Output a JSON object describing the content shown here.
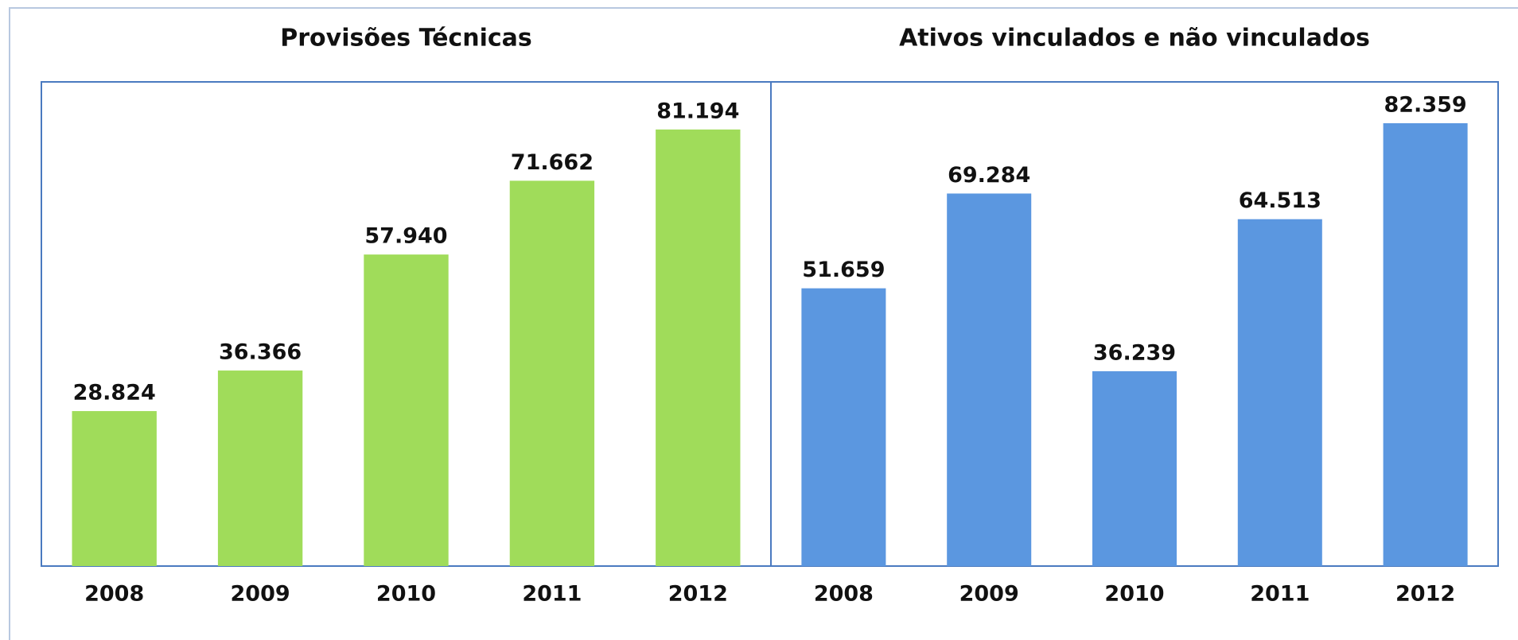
{
  "chart_data": [
    {
      "type": "bar",
      "title": "Provisões Técnicas",
      "categories": [
        "2008",
        "2009",
        "2010",
        "2011",
        "2012"
      ],
      "values": [
        28824,
        36366,
        57940,
        71662,
        81194
      ],
      "value_labels": [
        "28.824",
        "36.366",
        "57.940",
        "71.662",
        "81.194"
      ],
      "color": "#a0dc5a"
    },
    {
      "type": "bar",
      "title": "Ativos vinculados e não vinculados",
      "categories": [
        "2008",
        "2009",
        "2010",
        "2011",
        "2012"
      ],
      "values": [
        51659,
        69284,
        36239,
        64513,
        82359
      ],
      "value_labels": [
        "51.659",
        "69.284",
        "36.239",
        "64.513",
        "82.359"
      ],
      "color": "#5b97e0"
    }
  ]
}
